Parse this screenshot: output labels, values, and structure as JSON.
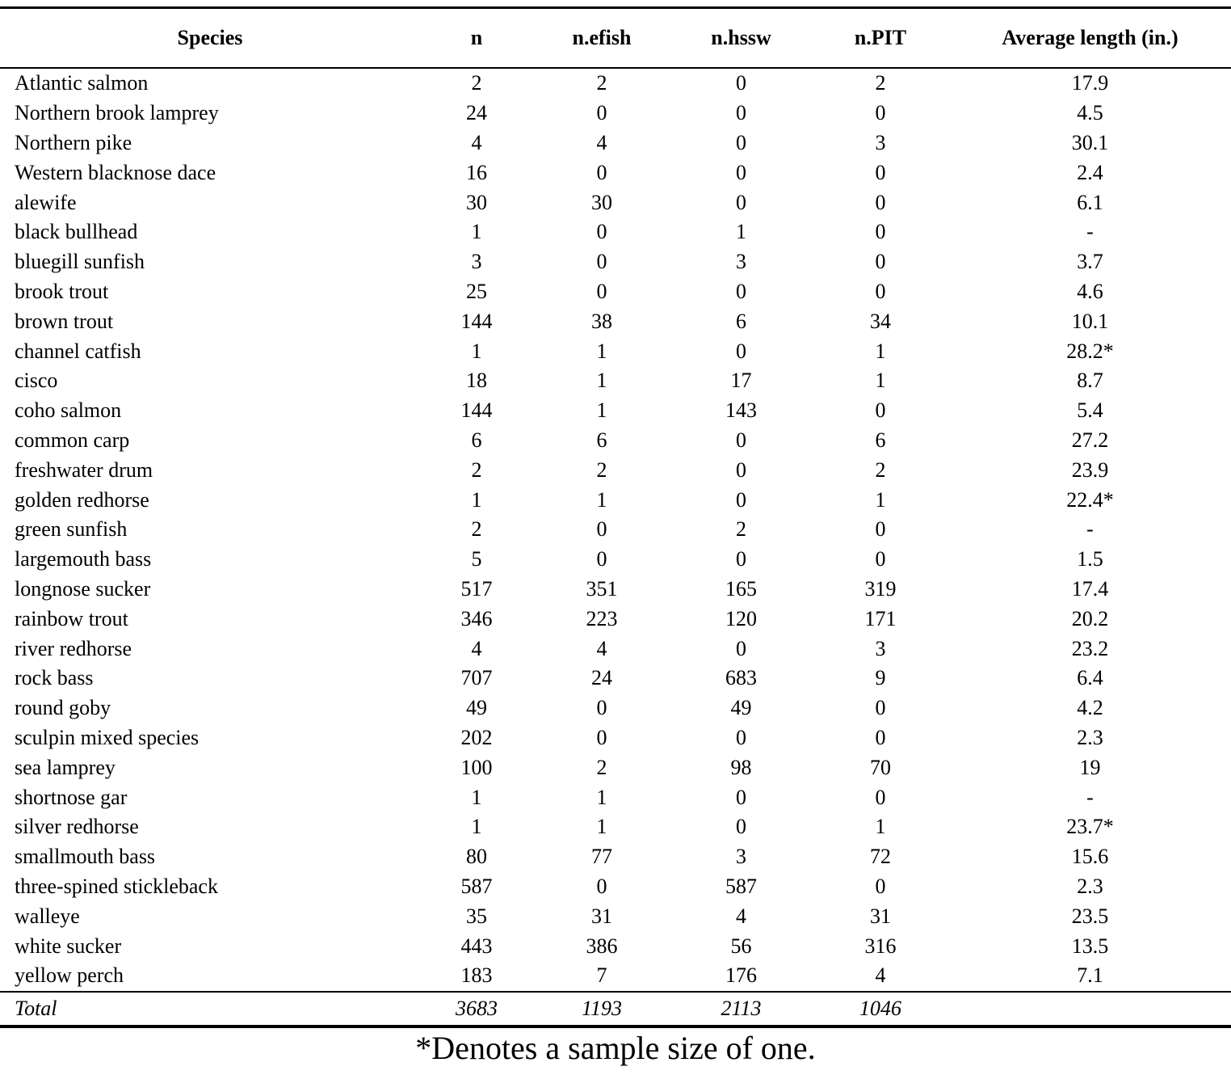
{
  "colors": {
    "background": "#ffffff",
    "text": "#000000",
    "rule": "#000000"
  },
  "table": {
    "columns": [
      {
        "key": "species",
        "label": "Species"
      },
      {
        "key": "n",
        "label": "n"
      },
      {
        "key": "n-efish",
        "label": "n.efish"
      },
      {
        "key": "n-hssw",
        "label": "n.hssw"
      },
      {
        "key": "n-pit",
        "label": "n.PIT"
      },
      {
        "key": "avg-length",
        "label": "Average length (in.)"
      }
    ],
    "rows": [
      [
        "Atlantic salmon",
        "2",
        "2",
        "0",
        "2",
        "17.9"
      ],
      [
        "Northern brook lamprey",
        "24",
        "0",
        "0",
        "0",
        "4.5"
      ],
      [
        "Northern pike",
        "4",
        "4",
        "0",
        "3",
        "30.1"
      ],
      [
        "Western blacknose dace",
        "16",
        "0",
        "0",
        "0",
        "2.4"
      ],
      [
        "alewife",
        "30",
        "30",
        "0",
        "0",
        "6.1"
      ],
      [
        "black bullhead",
        "1",
        "0",
        "1",
        "0",
        "-"
      ],
      [
        "bluegill sunfish",
        "3",
        "0",
        "3",
        "0",
        "3.7"
      ],
      [
        "brook trout",
        "25",
        "0",
        "0",
        "0",
        "4.6"
      ],
      [
        "brown trout",
        "144",
        "38",
        "6",
        "34",
        "10.1"
      ],
      [
        "channel catfish",
        "1",
        "1",
        "0",
        "1",
        "28.2*"
      ],
      [
        "cisco",
        "18",
        "1",
        "17",
        "1",
        "8.7"
      ],
      [
        "coho salmon",
        "144",
        "1",
        "143",
        "0",
        "5.4"
      ],
      [
        "common carp",
        "6",
        "6",
        "0",
        "6",
        "27.2"
      ],
      [
        "freshwater drum",
        "2",
        "2",
        "0",
        "2",
        "23.9"
      ],
      [
        "golden redhorse",
        "1",
        "1",
        "0",
        "1",
        "22.4*"
      ],
      [
        "green sunfish",
        "2",
        "0",
        "2",
        "0",
        "-"
      ],
      [
        "largemouth bass",
        "5",
        "0",
        "0",
        "0",
        "1.5"
      ],
      [
        "longnose sucker",
        "517",
        "351",
        "165",
        "319",
        "17.4"
      ],
      [
        "rainbow trout",
        "346",
        "223",
        "120",
        "171",
        "20.2"
      ],
      [
        "river redhorse",
        "4",
        "4",
        "0",
        "3",
        "23.2"
      ],
      [
        "rock bass",
        "707",
        "24",
        "683",
        "9",
        "6.4"
      ],
      [
        "round goby",
        "49",
        "0",
        "49",
        "0",
        "4.2"
      ],
      [
        "sculpin mixed species",
        "202",
        "0",
        "0",
        "0",
        "2.3"
      ],
      [
        "sea lamprey",
        "100",
        "2",
        "98",
        "70",
        "19"
      ],
      [
        "shortnose gar",
        "1",
        "1",
        "0",
        "0",
        "-"
      ],
      [
        "silver redhorse",
        "1",
        "1",
        "0",
        "1",
        "23.7*"
      ],
      [
        "smallmouth bass",
        "80",
        "77",
        "3",
        "72",
        "15.6"
      ],
      [
        "three-spined stickleback",
        "587",
        "0",
        "587",
        "0",
        "2.3"
      ],
      [
        "walleye",
        "35",
        "31",
        "4",
        "31",
        "23.5"
      ],
      [
        "white sucker",
        "443",
        "386",
        "56",
        "316",
        "13.5"
      ],
      [
        "yellow perch",
        "183",
        "7",
        "176",
        "4",
        "7.1"
      ]
    ],
    "total_row": [
      "Total",
      "3683",
      "1193",
      "2113",
      "1046",
      ""
    ],
    "footnote": "*Denotes a sample size of one."
  }
}
